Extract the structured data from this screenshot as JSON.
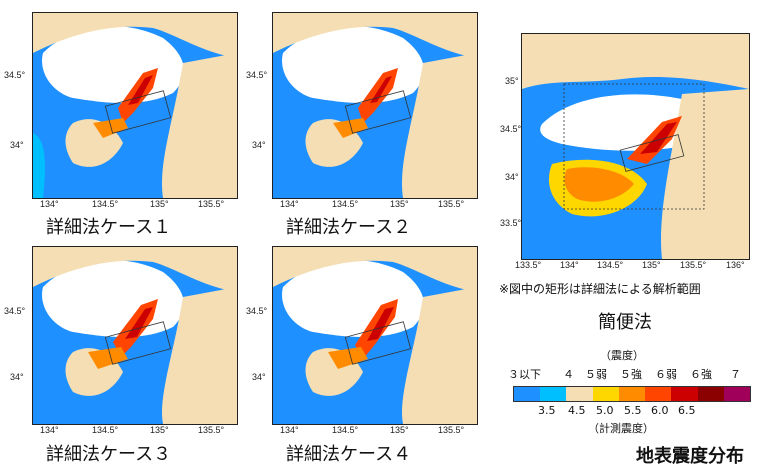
{
  "panels": {
    "case1": {
      "caption": "詳細法ケース１"
    },
    "case2": {
      "caption": "詳細法ケース２"
    },
    "case3": {
      "caption": "詳細法ケース３"
    },
    "case4": {
      "caption": "詳細法ケース４"
    },
    "simple": {
      "caption": "簡便法"
    }
  },
  "axis_small": {
    "x": [
      "134°",
      "134.5°",
      "135°",
      "135.5°"
    ],
    "y": [
      "34.5°",
      "34°"
    ]
  },
  "axis_large": {
    "x": [
      "133.5°",
      "134°",
      "134.5°",
      "135°",
      "135.5°",
      "136°"
    ],
    "y": [
      "35°",
      "34.5°",
      "34°",
      "33.5°"
    ]
  },
  "note": "※図中の矩形は詳細法による解析範囲",
  "legend": {
    "title": "（震度）",
    "classes": [
      "３以下",
      "４",
      "５弱",
      "５強",
      "６弱",
      "６強",
      "７"
    ],
    "values": [
      "3.5",
      "4.5",
      "5.0",
      "5.5",
      "6.0",
      "6.5"
    ],
    "subtitle": "（計測震度）",
    "colors": [
      "#1e90ff",
      "#00bfff",
      "#f5deb3",
      "#ffd700",
      "#ff8c00",
      "#ff4500",
      "#cc0000",
      "#8b0000",
      "#a0005a"
    ]
  },
  "figure_title": "地表震度分布"
}
